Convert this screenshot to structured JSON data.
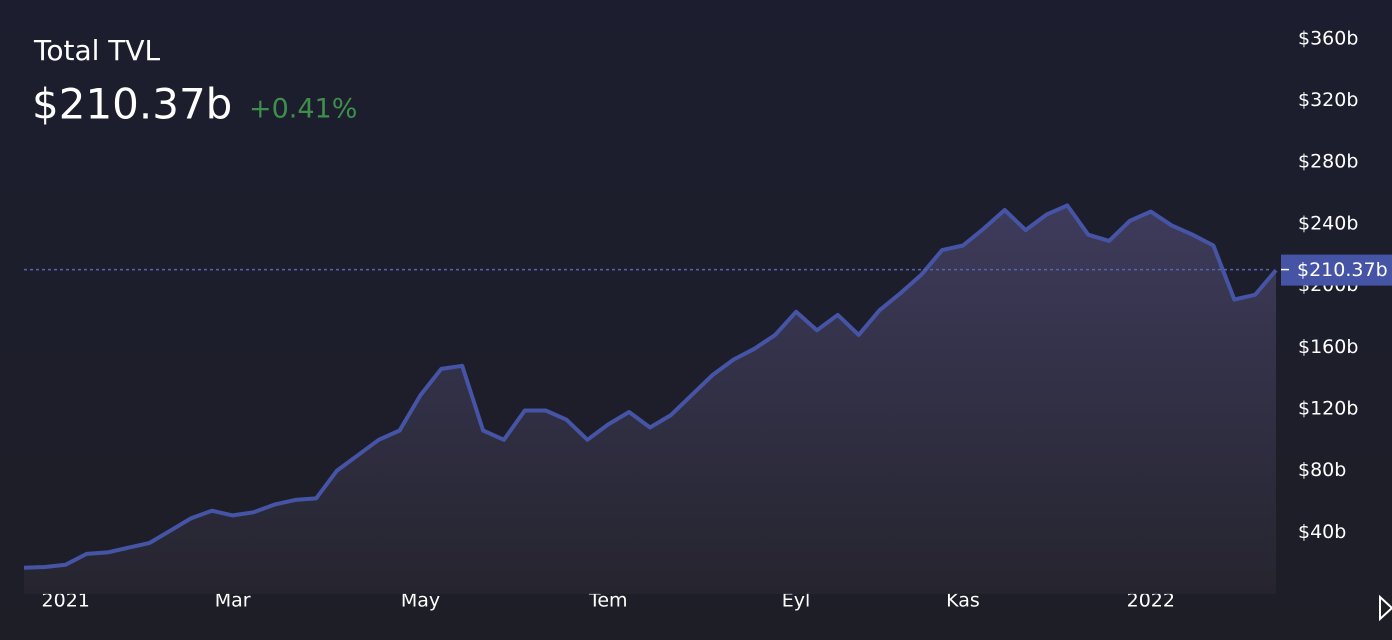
{
  "chart_data": {
    "type": "area",
    "title": "Total TVL",
    "current": {
      "value": 210.37,
      "label": "$210.37b"
    },
    "change": "+0.41%",
    "categories": [
      null,
      null,
      "2021",
      null,
      null,
      null,
      null,
      null,
      null,
      null,
      "Mar",
      null,
      null,
      null,
      null,
      null,
      null,
      null,
      null,
      "May",
      null,
      null,
      null,
      null,
      null,
      null,
      null,
      null,
      "Tem",
      null,
      null,
      null,
      null,
      null,
      null,
      null,
      null,
      "Eyl",
      null,
      null,
      null,
      null,
      null,
      null,
      null,
      "Kas",
      null,
      null,
      null,
      null,
      null,
      null,
      null,
      null,
      "2022",
      null,
      null,
      null,
      null,
      null,
      null
    ],
    "series": [
      {
        "name": "Total TVL",
        "color": "#4654a6",
        "values": [
          17,
          17.5,
          19,
          26,
          27,
          30,
          33,
          41,
          49,
          54,
          51,
          53,
          58,
          61,
          62,
          80,
          90,
          100,
          106,
          129,
          146,
          148,
          106,
          100,
          119,
          119,
          113,
          100,
          110,
          118,
          108,
          116,
          129,
          142,
          152,
          159,
          168,
          183,
          171,
          181,
          168,
          184,
          195,
          207,
          223,
          226,
          237,
          249,
          236,
          246,
          252,
          233,
          229,
          242,
          248,
          239,
          233,
          226,
          191,
          194,
          210
        ]
      }
    ],
    "ylim": [
      0,
      380
    ],
    "yticks": [
      {
        "value": 40,
        "label": "$40b"
      },
      {
        "value": 80,
        "label": "$80b"
      },
      {
        "value": 120,
        "label": "$120b"
      },
      {
        "value": 160,
        "label": "$160b"
      },
      {
        "value": 200,
        "label": "$200b"
      },
      {
        "value": 240,
        "label": "$240b"
      },
      {
        "value": 280,
        "label": "$280b"
      },
      {
        "value": 320,
        "label": "$320b"
      },
      {
        "value": 360,
        "label": "$360b"
      }
    ]
  }
}
